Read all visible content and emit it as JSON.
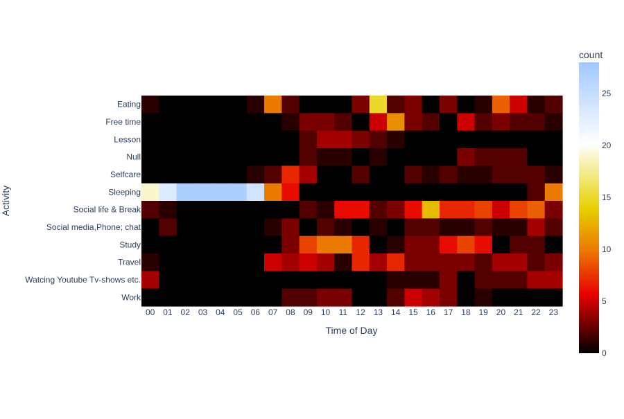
{
  "chart_data": {
    "type": "heatmap",
    "title": "",
    "xlabel": "Time of Day",
    "ylabel": "Activity",
    "x": [
      "00",
      "01",
      "02",
      "03",
      "04",
      "05",
      "06",
      "07",
      "08",
      "09",
      "10",
      "11",
      "12",
      "13",
      "14",
      "15",
      "16",
      "17",
      "18",
      "19",
      "20",
      "21",
      "22",
      "23"
    ],
    "y": [
      "Eating",
      "Free time",
      "Lesson",
      "Null",
      "Selfcare",
      "Sleeping",
      "Social life & Break",
      "Social media,Phone; chat",
      "Study",
      "Travel",
      "Watcing Youtube Tv-shows etc.",
      "Work"
    ],
    "z": [
      [
        1,
        0,
        0,
        0,
        0,
        0,
        1,
        10,
        2,
        0,
        0,
        0,
        3,
        15,
        2,
        3,
        0,
        3,
        0,
        1,
        9,
        5,
        1,
        2
      ],
      [
        0,
        0,
        0,
        0,
        0,
        0,
        0,
        0,
        1,
        3,
        3,
        2,
        0,
        5,
        11,
        3,
        2,
        0,
        5,
        2,
        3,
        2,
        2,
        1
      ],
      [
        0,
        0,
        0,
        0,
        0,
        0,
        0,
        0,
        0,
        2,
        4,
        4,
        3,
        2,
        1,
        0,
        0,
        0,
        0,
        0,
        0,
        0,
        0,
        0
      ],
      [
        0,
        0,
        0,
        0,
        0,
        0,
        0,
        0,
        0,
        2,
        1,
        1,
        0,
        1,
        0,
        0,
        0,
        0,
        3,
        2,
        2,
        2,
        0,
        0
      ],
      [
        0,
        0,
        0,
        0,
        0,
        0,
        1,
        2,
        7,
        4,
        0,
        0,
        2,
        0,
        0,
        2,
        1,
        2,
        1,
        1,
        2,
        2,
        2,
        1
      ],
      [
        19,
        23,
        27,
        27,
        27,
        27,
        24,
        10,
        6,
        0,
        0,
        0,
        0,
        0,
        0,
        0,
        0,
        0,
        0,
        0,
        0,
        0,
        2,
        10
      ],
      [
        2,
        1,
        0,
        0,
        0,
        0,
        0,
        0,
        0,
        2,
        1,
        6,
        6,
        2,
        3,
        6,
        13,
        7,
        7,
        8,
        5,
        8,
        9,
        3
      ],
      [
        0,
        2,
        0,
        0,
        0,
        0,
        0,
        1,
        3,
        0,
        2,
        1,
        0,
        1,
        0,
        2,
        2,
        1,
        1,
        2,
        1,
        1,
        4,
        2
      ],
      [
        0,
        0,
        0,
        0,
        0,
        0,
        0,
        0,
        3,
        8,
        10,
        10,
        7,
        0,
        1,
        3,
        3,
        6,
        8,
        6,
        0,
        2,
        2,
        0
      ],
      [
        1,
        0,
        0,
        0,
        0,
        0,
        0,
        5,
        4,
        5,
        4,
        1,
        7,
        4,
        7,
        3,
        3,
        3,
        3,
        2,
        4,
        4,
        2,
        3
      ],
      [
        4,
        0,
        0,
        0,
        0,
        0,
        0,
        0,
        0,
        0,
        0,
        0,
        0,
        0,
        1,
        1,
        1,
        3,
        0,
        2,
        2,
        2,
        4,
        4
      ],
      [
        0,
        0,
        0,
        0,
        0,
        0,
        0,
        0,
        2,
        2,
        3,
        3,
        0,
        0,
        2,
        5,
        4,
        3,
        0,
        1,
        0,
        0,
        0,
        0
      ]
    ],
    "zmin": 0,
    "zmax": 28,
    "colorscale": [
      [
        0.0,
        "#000000"
      ],
      [
        0.2,
        "#E60000"
      ],
      [
        0.35,
        "#EC7600"
      ],
      [
        0.5,
        "#E6D200"
      ],
      [
        0.72,
        "#FFFFFF"
      ],
      [
        1.0,
        "#A0C8FF"
      ]
    ],
    "colorbar": {
      "title": "count",
      "tickvals": [
        0,
        5,
        10,
        15,
        20,
        25
      ]
    }
  }
}
